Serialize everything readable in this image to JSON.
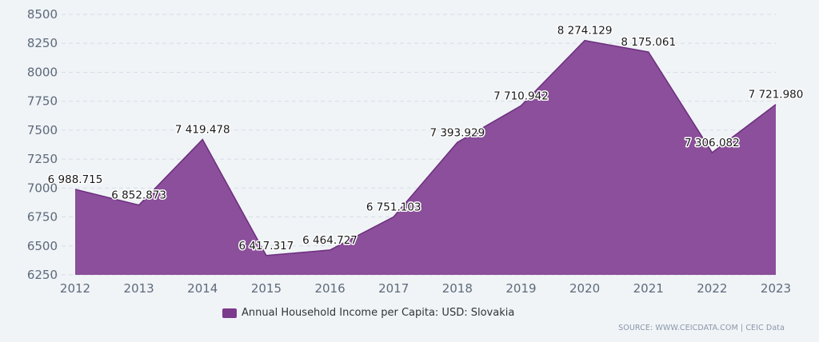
{
  "chart_data": {
    "type": "area",
    "x": [
      "2012",
      "2013",
      "2014",
      "2015",
      "2016",
      "2017",
      "2018",
      "2019",
      "2020",
      "2021",
      "2022",
      "2023"
    ],
    "series": [
      {
        "name": "Annual Household Income per Capita: USD: Slovakia",
        "values": [
          6988.715,
          6852.873,
          7419.478,
          6417.317,
          6464.727,
          6751.103,
          7393.929,
          7710.942,
          8274.129,
          8175.061,
          7306.082,
          7721.98
        ],
        "labels": [
          "6 988.715",
          "6 852.873",
          "7 419.478",
          "6 417.317",
          "6 464.727",
          "6 751.103",
          "7 393.929",
          "7 710.942",
          "8 274.129",
          "8 175.061",
          "7 306.082",
          "7 721.980"
        ]
      }
    ],
    "yticks": [
      "6250",
      "6500",
      "6750",
      "7000",
      "7250",
      "7500",
      "7750",
      "8000",
      "8250",
      "8500"
    ],
    "ylim": [
      6250,
      8500
    ],
    "grid": true,
    "legend_position": "bottom-center",
    "colors": {
      "fill": "#8b4f9b",
      "line": "#6d2f7e",
      "legend": "#7b3a8c",
      "grid": "#d6dde6",
      "axis_text": "#5e6a7a"
    }
  },
  "legend": {
    "label": "Annual Household Income per Capita: USD: Slovakia"
  },
  "source": {
    "text": "SOURCE: WWW.CEICDATA.COM | CEIC Data"
  }
}
